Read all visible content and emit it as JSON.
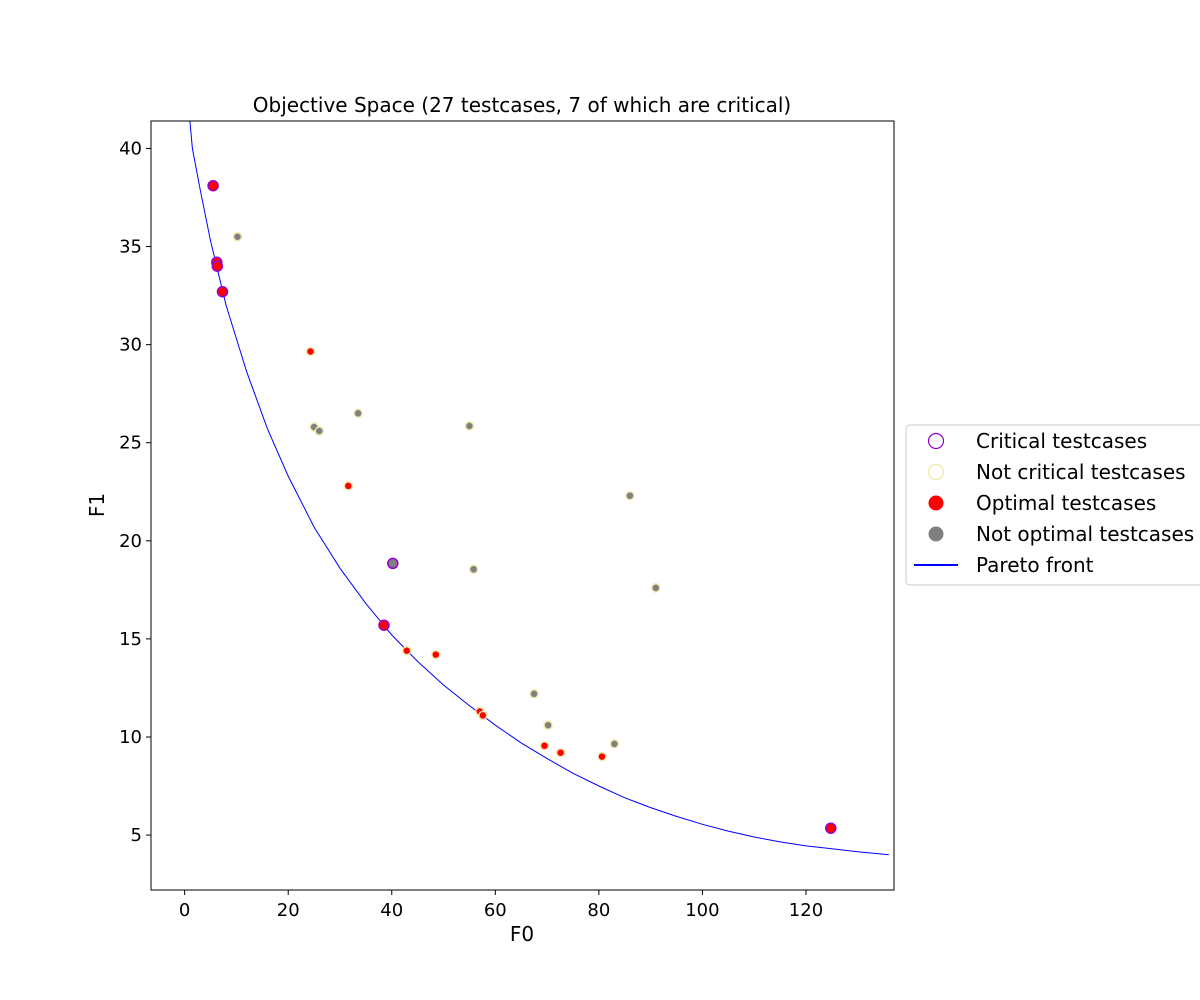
{
  "chart_data": {
    "type": "scatter",
    "title": "Objective Space (27 testcases, 7 of which are critical)",
    "xlabel": "F0",
    "ylabel": "F1",
    "xlim": [
      -6.5,
      137
    ],
    "ylim": [
      2.2,
      41.4
    ],
    "xticks": [
      0,
      20,
      40,
      60,
      80,
      100,
      120
    ],
    "yticks": [
      5,
      10,
      15,
      20,
      25,
      30,
      35,
      40
    ],
    "grid": false,
    "legend_placement": "right",
    "legend": [
      {
        "label": "Critical testcases",
        "kind": "circle-outline",
        "color": "#9400d3"
      },
      {
        "label": "Not critical testcases",
        "kind": "circle-outline",
        "color": "#eee8aa"
      },
      {
        "label": "Optimal testcases",
        "kind": "circle-filled",
        "color": "#ff0000"
      },
      {
        "label": "Not optimal testcases",
        "kind": "circle-filled",
        "color": "#808080"
      },
      {
        "label": "Pareto front",
        "kind": "line",
        "color": "#0000ff"
      }
    ],
    "points": [
      {
        "x": 5.5,
        "y": 38.1,
        "critical": true,
        "optimal": true
      },
      {
        "x": 6.2,
        "y": 34.2,
        "critical": true,
        "optimal": true
      },
      {
        "x": 6.3,
        "y": 34.0,
        "critical": true,
        "optimal": true
      },
      {
        "x": 7.3,
        "y": 32.7,
        "critical": true,
        "optimal": true
      },
      {
        "x": 38.5,
        "y": 15.7,
        "critical": true,
        "optimal": true
      },
      {
        "x": 124.8,
        "y": 5.35,
        "critical": true,
        "optimal": true
      },
      {
        "x": 40.2,
        "y": 18.85,
        "critical": true,
        "optimal": false
      },
      {
        "x": 10.2,
        "y": 35.5,
        "critical": false,
        "optimal": false
      },
      {
        "x": 25.0,
        "y": 25.8,
        "critical": false,
        "optimal": false
      },
      {
        "x": 26.0,
        "y": 25.6,
        "critical": false,
        "optimal": false
      },
      {
        "x": 33.5,
        "y": 26.5,
        "critical": false,
        "optimal": false
      },
      {
        "x": 55.0,
        "y": 25.85,
        "critical": false,
        "optimal": false
      },
      {
        "x": 55.8,
        "y": 18.55,
        "critical": false,
        "optimal": false
      },
      {
        "x": 67.5,
        "y": 12.2,
        "critical": false,
        "optimal": false
      },
      {
        "x": 70.2,
        "y": 10.6,
        "critical": false,
        "optimal": false
      },
      {
        "x": 83.0,
        "y": 9.65,
        "critical": false,
        "optimal": false
      },
      {
        "x": 86.0,
        "y": 22.3,
        "critical": false,
        "optimal": false
      },
      {
        "x": 91.0,
        "y": 17.6,
        "critical": false,
        "optimal": false
      },
      {
        "x": 24.3,
        "y": 29.65,
        "critical": false,
        "optimal": true
      },
      {
        "x": 31.6,
        "y": 22.8,
        "critical": false,
        "optimal": true
      },
      {
        "x": 42.9,
        "y": 14.4,
        "critical": false,
        "optimal": true
      },
      {
        "x": 48.5,
        "y": 14.2,
        "critical": false,
        "optimal": true
      },
      {
        "x": 57.0,
        "y": 11.3,
        "critical": false,
        "optimal": true
      },
      {
        "x": 57.6,
        "y": 11.1,
        "critical": false,
        "optimal": true
      },
      {
        "x": 69.5,
        "y": 9.55,
        "critical": false,
        "optimal": true
      },
      {
        "x": 72.6,
        "y": 9.2,
        "critical": false,
        "optimal": true
      },
      {
        "x": 80.6,
        "y": 9.0,
        "critical": false,
        "optimal": true
      }
    ],
    "pareto_front": {
      "name": "Pareto front",
      "x": [
        0.8,
        1.5,
        3,
        5,
        8,
        12,
        16,
        20,
        25,
        30,
        35,
        40,
        45,
        50,
        55,
        60,
        65,
        70,
        75,
        80,
        85,
        90,
        95,
        100,
        105,
        110,
        115,
        120,
        125,
        130,
        136
      ],
      "y": [
        42.0,
        40.0,
        37.9,
        35.3,
        32.0,
        28.6,
        25.7,
        23.3,
        20.7,
        18.6,
        16.8,
        15.2,
        13.85,
        12.65,
        11.6,
        10.6,
        9.7,
        8.9,
        8.15,
        7.5,
        6.9,
        6.4,
        5.95,
        5.55,
        5.2,
        4.9,
        4.65,
        4.45,
        4.3,
        4.15,
        4.0
      ]
    }
  }
}
